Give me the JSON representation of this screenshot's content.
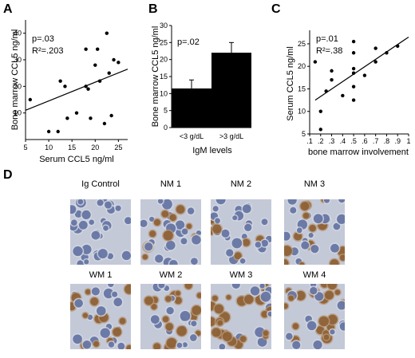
{
  "panels": {
    "A": "A",
    "B": "B",
    "C": "C",
    "D": "D"
  },
  "chart_data": [
    {
      "panel": "A",
      "type": "scatter",
      "xlabel": "Serum CCL5 ng/ml",
      "ylabel": "Bone marrow CCL5 ng/ml",
      "xlim": [
        5,
        27
      ],
      "ylim": [
        0,
        45
      ],
      "xticks": [
        "5",
        "10",
        "15",
        "20",
        "25"
      ],
      "xtick_values": [
        5,
        10,
        15,
        20,
        25
      ],
      "yticks": [
        "10",
        "20",
        "30",
        "40"
      ],
      "ytick_values": [
        10,
        20,
        30,
        40
      ],
      "annotations": [
        "p=.03",
        "R²=.203"
      ],
      "points": [
        {
          "x": 6,
          "y": 15
        },
        {
          "x": 10,
          "y": 3
        },
        {
          "x": 12,
          "y": 3
        },
        {
          "x": 12.5,
          "y": 22
        },
        {
          "x": 13.5,
          "y": 20
        },
        {
          "x": 14,
          "y": 8
        },
        {
          "x": 16,
          "y": 10
        },
        {
          "x": 18,
          "y": 34
        },
        {
          "x": 18,
          "y": 20
        },
        {
          "x": 18.5,
          "y": 19
        },
        {
          "x": 19,
          "y": 8
        },
        {
          "x": 20,
          "y": 28
        },
        {
          "x": 20.5,
          "y": 34
        },
        {
          "x": 21,
          "y": 22
        },
        {
          "x": 22,
          "y": 6
        },
        {
          "x": 22.5,
          "y": 40
        },
        {
          "x": 23,
          "y": 25
        },
        {
          "x": 23.5,
          "y": 9
        },
        {
          "x": 24,
          "y": 30
        },
        {
          "x": 25,
          "y": 29
        }
      ],
      "fit_line": {
        "x": [
          5,
          27
        ],
        "y": [
          11,
          26.5
        ]
      }
    },
    {
      "panel": "B",
      "type": "bar",
      "xlabel": "IgM levels",
      "ylabel": "Bone marrow CCL5 ng/ml",
      "categories": [
        "<3 g/dL",
        ">3 g/dL"
      ],
      "values": [
        11.5,
        22
      ],
      "errors": [
        2.5,
        3
      ],
      "ylim": [
        0,
        30
      ],
      "yticks": [
        "0",
        "5",
        "10",
        "15",
        "20",
        "25",
        "30"
      ],
      "ytick_values": [
        0,
        5,
        10,
        15,
        20,
        25,
        30
      ],
      "annotations": [
        "p=.02"
      ]
    },
    {
      "panel": "C",
      "type": "scatter",
      "xlabel": "bone marrow involvement",
      "ylabel": "Serum CCL5 ng/ml",
      "xlim": [
        0.1,
        1.0
      ],
      "ylim": [
        5,
        28
      ],
      "xticks": [
        ".1",
        ".2",
        ".3",
        ".4",
        ".5",
        ".6",
        ".7",
        ".8",
        ".9",
        "1"
      ],
      "xtick_values": [
        0.1,
        0.2,
        0.3,
        0.4,
        0.5,
        0.6,
        0.7,
        0.8,
        0.9,
        1.0
      ],
      "yticks": [
        "5",
        "10",
        "15",
        "20",
        "25"
      ],
      "ytick_values": [
        5,
        10,
        15,
        20,
        25
      ],
      "annotations": [
        "p=.01",
        "R²=.38"
      ],
      "points": [
        {
          "x": 0.15,
          "y": 21
        },
        {
          "x": 0.2,
          "y": 6
        },
        {
          "x": 0.2,
          "y": 10
        },
        {
          "x": 0.25,
          "y": 14.5
        },
        {
          "x": 0.3,
          "y": 17
        },
        {
          "x": 0.3,
          "y": 19
        },
        {
          "x": 0.4,
          "y": 13.5
        },
        {
          "x": 0.5,
          "y": 12.5
        },
        {
          "x": 0.5,
          "y": 15.5
        },
        {
          "x": 0.5,
          "y": 18.5
        },
        {
          "x": 0.5,
          "y": 19.5
        },
        {
          "x": 0.5,
          "y": 23
        },
        {
          "x": 0.5,
          "y": 25.5
        },
        {
          "x": 0.6,
          "y": 18
        },
        {
          "x": 0.7,
          "y": 21
        },
        {
          "x": 0.7,
          "y": 24
        },
        {
          "x": 0.8,
          "y": 23
        },
        {
          "x": 0.9,
          "y": 24.5
        }
      ],
      "fit_line": {
        "x": [
          0.15,
          1.0
        ],
        "y": [
          12.5,
          26.5
        ]
      }
    }
  ],
  "micrographs": {
    "labels": [
      "Ig Control",
      "NM 1",
      "NM 2",
      "NM 3",
      "WM 1",
      "WM 2",
      "WM 3",
      "WM 4"
    ],
    "background_color": "#c4c9d8",
    "nucleus_color": "#5a6a9c",
    "stain_color": "#8a5a2e",
    "stain_levels": [
      0,
      0.35,
      0.15,
      0.25,
      0.5,
      0.45,
      0.75,
      0.55
    ]
  }
}
